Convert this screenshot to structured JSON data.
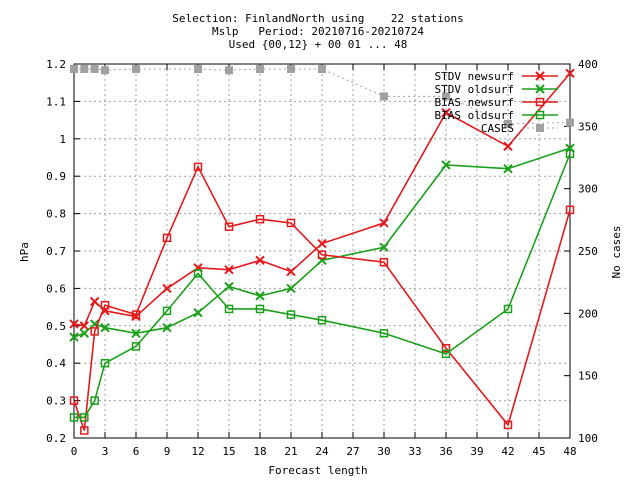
{
  "chart_data": {
    "type": "line",
    "title_lines": [
      "Selection: FinlandNorth using    22 stations",
      "Mslp   Period: 20210716-20210724",
      "Used {00,12} + 00 01 ... 48"
    ],
    "xlabel": "Forecast length",
    "ylabel": "hPa",
    "y2label": "No cases",
    "xlim": [
      0,
      48
    ],
    "ylim": [
      0.2,
      1.2
    ],
    "y2lim": [
      100,
      400
    ],
    "x_ticks": [
      0,
      3,
      6,
      9,
      12,
      15,
      18,
      21,
      24,
      27,
      30,
      33,
      36,
      39,
      42,
      45,
      48
    ],
    "y_ticks": [
      "0.2",
      "0.3",
      "0.4",
      "0.5",
      "0.6",
      "0.7",
      "0.8",
      "0.9",
      "1",
      "1.1",
      "1.2"
    ],
    "y2_ticks": [
      "100",
      "150",
      "200",
      "250",
      "300",
      "350",
      "400"
    ],
    "grid": true,
    "legend_position": "top-right",
    "series": [
      {
        "name": "STDV newsurf",
        "color": "#e31a1c",
        "marker": "x",
        "axis": "y",
        "x": [
          0,
          1,
          2,
          3,
          6,
          9,
          12,
          15,
          18,
          21,
          24,
          30,
          36,
          42,
          48
        ],
        "values": [
          0.505,
          0.5,
          0.565,
          0.54,
          0.525,
          0.6,
          0.655,
          0.65,
          0.675,
          0.645,
          0.72,
          0.775,
          1.07,
          0.98,
          1.175
        ]
      },
      {
        "name": "STDV oldsurf",
        "color": "#1aa01a",
        "marker": "x",
        "axis": "y",
        "x": [
          0,
          1,
          2,
          3,
          6,
          9,
          12,
          15,
          18,
          21,
          24,
          30,
          36,
          42,
          48
        ],
        "values": [
          0.47,
          0.48,
          0.505,
          0.495,
          0.48,
          0.495,
          0.535,
          0.605,
          0.58,
          0.6,
          0.675,
          0.71,
          0.93,
          0.92,
          0.975
        ]
      },
      {
        "name": "BIAS newsurf",
        "color": "#e31a1c",
        "marker": "square",
        "axis": "y",
        "x": [
          0,
          1,
          2,
          3,
          6,
          9,
          12,
          15,
          18,
          21,
          24,
          30,
          36,
          42,
          48
        ],
        "values": [
          0.3,
          0.22,
          0.485,
          0.555,
          0.53,
          0.735,
          0.925,
          0.765,
          0.785,
          0.775,
          0.69,
          0.67,
          0.44,
          0.235,
          0.81
        ]
      },
      {
        "name": "BIAS oldsurf",
        "color": "#1aa01a",
        "marker": "square",
        "axis": "y",
        "x": [
          0,
          1,
          2,
          3,
          6,
          9,
          12,
          15,
          18,
          21,
          24,
          30,
          36,
          42,
          48
        ],
        "values": [
          0.255,
          0.255,
          0.3,
          0.4,
          0.445,
          0.54,
          0.64,
          0.545,
          0.545,
          0.53,
          0.515,
          0.48,
          0.425,
          0.545,
          0.96
        ]
      },
      {
        "name": "CASES",
        "color": "#a0a0a0",
        "marker": "filled-square",
        "axis": "y2",
        "x": [
          0,
          1,
          2,
          3,
          6,
          12,
          15,
          18,
          21,
          24,
          30,
          36,
          42,
          48
        ],
        "values": [
          396,
          396,
          396,
          395,
          396,
          396,
          395,
          396,
          396,
          396,
          374,
          374,
          352,
          353
        ]
      }
    ]
  }
}
